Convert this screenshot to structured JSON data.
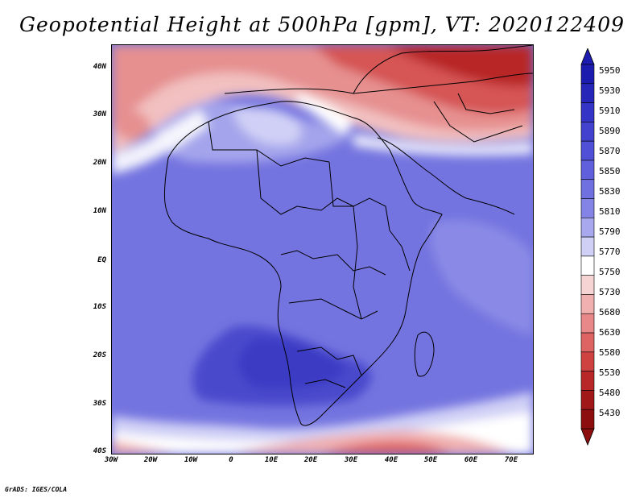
{
  "title": "Geopotential Height at 500hPa [gpm], VT: 2020122409",
  "credit": "GrADS: IGES/COLA",
  "latitude_labels": [
    "40N",
    "30N",
    "20N",
    "10N",
    "EQ",
    "10S",
    "20S",
    "30S",
    "40S"
  ],
  "longitude_labels": [
    "30W",
    "20W",
    "10W",
    "0",
    "10E",
    "20E",
    "30E",
    "40E",
    "50E",
    "60E",
    "70E"
  ],
  "colorbar": {
    "levels": [
      "5950",
      "5930",
      "5910",
      "5890",
      "5870",
      "5850",
      "5830",
      "5810",
      "5790",
      "5770",
      "5750",
      "5730",
      "5680",
      "5630",
      "5580",
      "5530",
      "5480",
      "5430"
    ],
    "colors": [
      "#1c1cae",
      "#2626b8",
      "#3434c6",
      "#4242cf",
      "#5050d6",
      "#6060dc",
      "#7070e0",
      "#8484e6",
      "#a8a8ee",
      "#d0d0f6",
      "#ffffff",
      "#f6d4d4",
      "#f0b0b0",
      "#e88888",
      "#de6464",
      "#cf4242",
      "#b82828",
      "#a01818",
      "#8c0e0e"
    ]
  },
  "chart_data": {
    "type": "heatmap",
    "variable": "Geopotential Height at 500hPa",
    "units": "gpm",
    "valid_time": "2020122409",
    "lon_range": [
      -30,
      75
    ],
    "lat_range": [
      -40,
      45
    ],
    "levels": [
      5430,
      5480,
      5530,
      5580,
      5630,
      5680,
      5730,
      5750,
      5770,
      5790,
      5810,
      5830,
      5850,
      5870,
      5890,
      5910,
      5930,
      5950
    ]
  }
}
